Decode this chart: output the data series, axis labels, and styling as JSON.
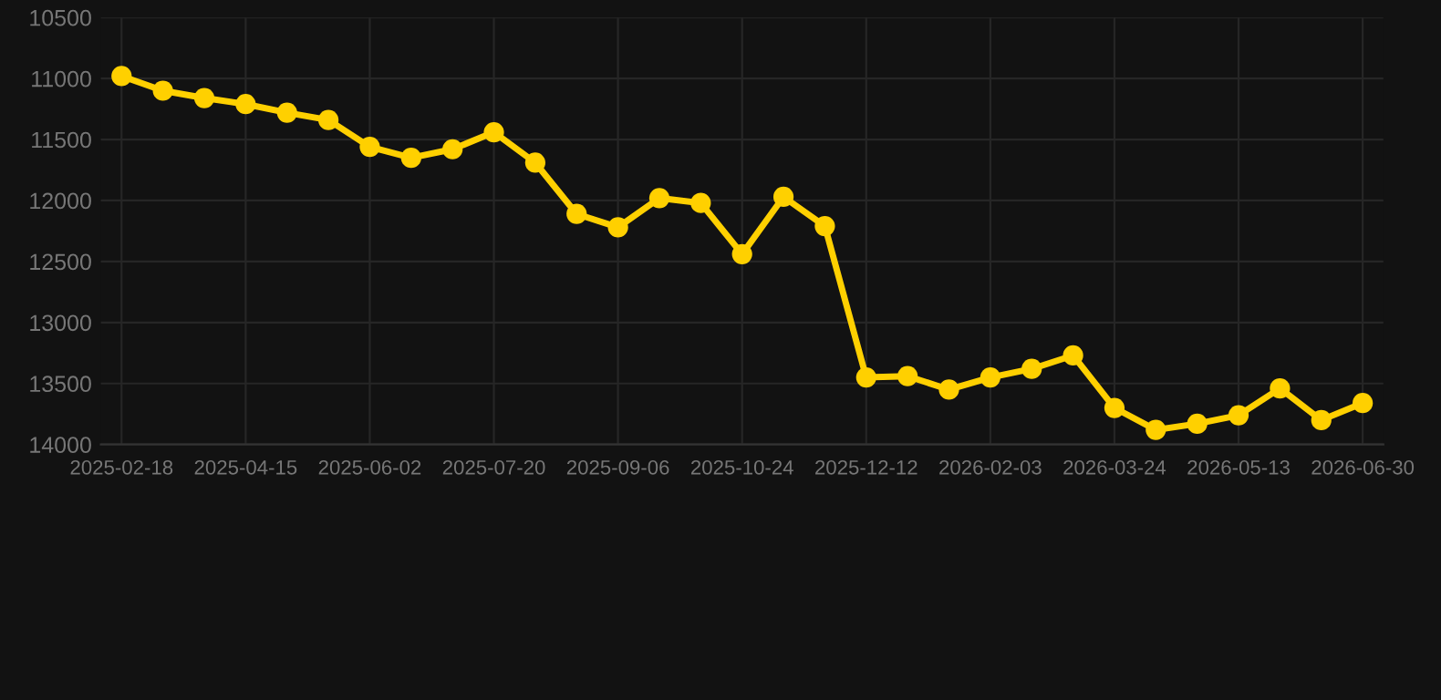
{
  "chart_data": {
    "type": "line",
    "categories": [
      "2025-02-18",
      null,
      null,
      "2025-04-15",
      null,
      null,
      "2025-06-02",
      null,
      null,
      "2025-07-20",
      null,
      null,
      "2025-09-06",
      null,
      null,
      "2025-10-24",
      null,
      null,
      "2025-12-12",
      null,
      null,
      "2026-02-03",
      null,
      null,
      "2026-03-24",
      null,
      null,
      "2026-05-13",
      null,
      null,
      "2026-06-30"
    ],
    "series": [
      {
        "color": "#ffd000",
        "values": [
          10980,
          11100,
          11160,
          11210,
          11280,
          11340,
          11560,
          11650,
          11580,
          11440,
          11690,
          12110,
          12220,
          11980,
          12020,
          12440,
          11970,
          12210,
          13450,
          13440,
          13550,
          13450,
          13380,
          13270,
          13700,
          13880,
          13830,
          13760,
          13540,
          13800,
          13660
        ]
      }
    ],
    "ylim": [
      14000,
      10500
    ],
    "yticks": [
      10500,
      11000,
      11500,
      12000,
      12500,
      13000,
      13500,
      14000
    ],
    "grid": true,
    "marker": "circle",
    "line_style": "solid"
  }
}
